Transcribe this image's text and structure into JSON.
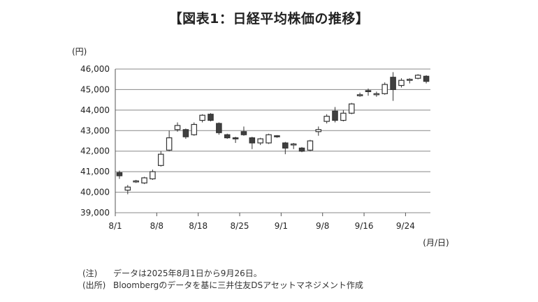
{
  "title": "【図表1：日経平均株価の推移】",
  "notes": [
    {
      "tag": "(注)",
      "text": "データは2025年8月1日から9月26日。"
    },
    {
      "tag": "(出所)",
      "text": "Bloombergのデータを基に三井住友DSアセットマネジメント作成"
    }
  ],
  "colors": {
    "up": "#ffffff",
    "down": "#404040",
    "stroke": "#333333",
    "grid": "#888888"
  },
  "chart_data": {
    "type": "candlestick",
    "y_unit_label": "(円)",
    "x_unit_label": "(月/日)",
    "ylim": [
      39000,
      46000
    ],
    "yticks": [
      "39,000",
      "40,000",
      "41,000",
      "42,000",
      "43,000",
      "44,000",
      "45,000",
      "46,000"
    ],
    "ytick_values": [
      39000,
      40000,
      41000,
      42000,
      43000,
      44000,
      45000,
      46000
    ],
    "xtick_labels": [
      {
        "label": "8/1",
        "index": 0
      },
      {
        "label": "8/8",
        "index": 5
      },
      {
        "label": "8/18",
        "index": 10
      },
      {
        "label": "8/25",
        "index": 15
      },
      {
        "label": "9/1",
        "index": 20
      },
      {
        "label": "9/8",
        "index": 25
      },
      {
        "label": "9/16",
        "index": 30
      },
      {
        "label": "9/24",
        "index": 35
      }
    ],
    "n_slots": 38,
    "grid": true,
    "candles": [
      {
        "open": 40950,
        "high": 41050,
        "low": 40650,
        "close": 40800
      },
      {
        "open": 40100,
        "high": 40350,
        "low": 39900,
        "close": 40250
      },
      {
        "open": 40500,
        "high": 40600,
        "low": 40450,
        "close": 40550
      },
      {
        "open": 40450,
        "high": 40750,
        "low": 40400,
        "close": 40700
      },
      {
        "open": 40650,
        "high": 41100,
        "low": 40600,
        "close": 41000
      },
      {
        "open": 41300,
        "high": 42000,
        "low": 41250,
        "close": 41850
      },
      {
        "open": 42050,
        "high": 43000,
        "low": 42000,
        "close": 42650
      },
      {
        "open": 43050,
        "high": 43400,
        "low": 42950,
        "close": 43250
      },
      {
        "open": 43050,
        "high": 43100,
        "low": 42600,
        "close": 42700
      },
      {
        "open": 42800,
        "high": 43400,
        "low": 42750,
        "close": 43300
      },
      {
        "open": 43500,
        "high": 43800,
        "low": 43400,
        "close": 43750
      },
      {
        "open": 43800,
        "high": 43850,
        "low": 43450,
        "close": 43500
      },
      {
        "open": 43350,
        "high": 43400,
        "low": 42800,
        "close": 42900
      },
      {
        "open": 42800,
        "high": 42850,
        "low": 42600,
        "close": 42650
      },
      {
        "open": 42650,
        "high": 42700,
        "low": 42400,
        "close": 42600
      },
      {
        "open": 42950,
        "high": 43200,
        "low": 42750,
        "close": 42800
      },
      {
        "open": 42650,
        "high": 42700,
        "low": 42100,
        "close": 42400
      },
      {
        "open": 42400,
        "high": 42650,
        "low": 42300,
        "close": 42600
      },
      {
        "open": 42400,
        "high": 42850,
        "low": 42350,
        "close": 42800
      },
      {
        "open": 42750,
        "high": 42780,
        "low": 42650,
        "close": 42700
      },
      {
        "open": 42400,
        "high": 42450,
        "low": 41850,
        "close": 42150
      },
      {
        "open": 42300,
        "high": 42400,
        "low": 42100,
        "close": 42350
      },
      {
        "open": 42150,
        "high": 42200,
        "low": 41950,
        "close": 42000
      },
      {
        "open": 42050,
        "high": 42550,
        "low": 42000,
        "close": 42500
      },
      {
        "open": 42950,
        "high": 43200,
        "low": 42750,
        "close": 43050
      },
      {
        "open": 43450,
        "high": 43800,
        "low": 43350,
        "close": 43700
      },
      {
        "open": 43950,
        "high": 44150,
        "low": 43400,
        "close": 43500
      },
      {
        "open": 43500,
        "high": 44000,
        "low": 43450,
        "close": 43850
      },
      {
        "open": 43850,
        "high": 44350,
        "low": 43800,
        "close": 44300
      },
      {
        "open": 44700,
        "high": 44850,
        "low": 44650,
        "close": 44750
      },
      {
        "open": 44950,
        "high": 45050,
        "low": 44700,
        "close": 44900
      },
      {
        "open": 44750,
        "high": 44900,
        "low": 44650,
        "close": 44800
      },
      {
        "open": 44800,
        "high": 45350,
        "low": 44750,
        "close": 45250
      },
      {
        "open": 45600,
        "high": 45850,
        "low": 44450,
        "close": 45000
      },
      {
        "open": 45200,
        "high": 45550,
        "low": 45100,
        "close": 45450
      },
      {
        "open": 45450,
        "high": 45550,
        "low": 45300,
        "close": 45500
      },
      {
        "open": 45550,
        "high": 45750,
        "low": 45500,
        "close": 45700
      },
      {
        "open": 45650,
        "high": 45700,
        "low": 45300,
        "close": 45400
      }
    ]
  }
}
